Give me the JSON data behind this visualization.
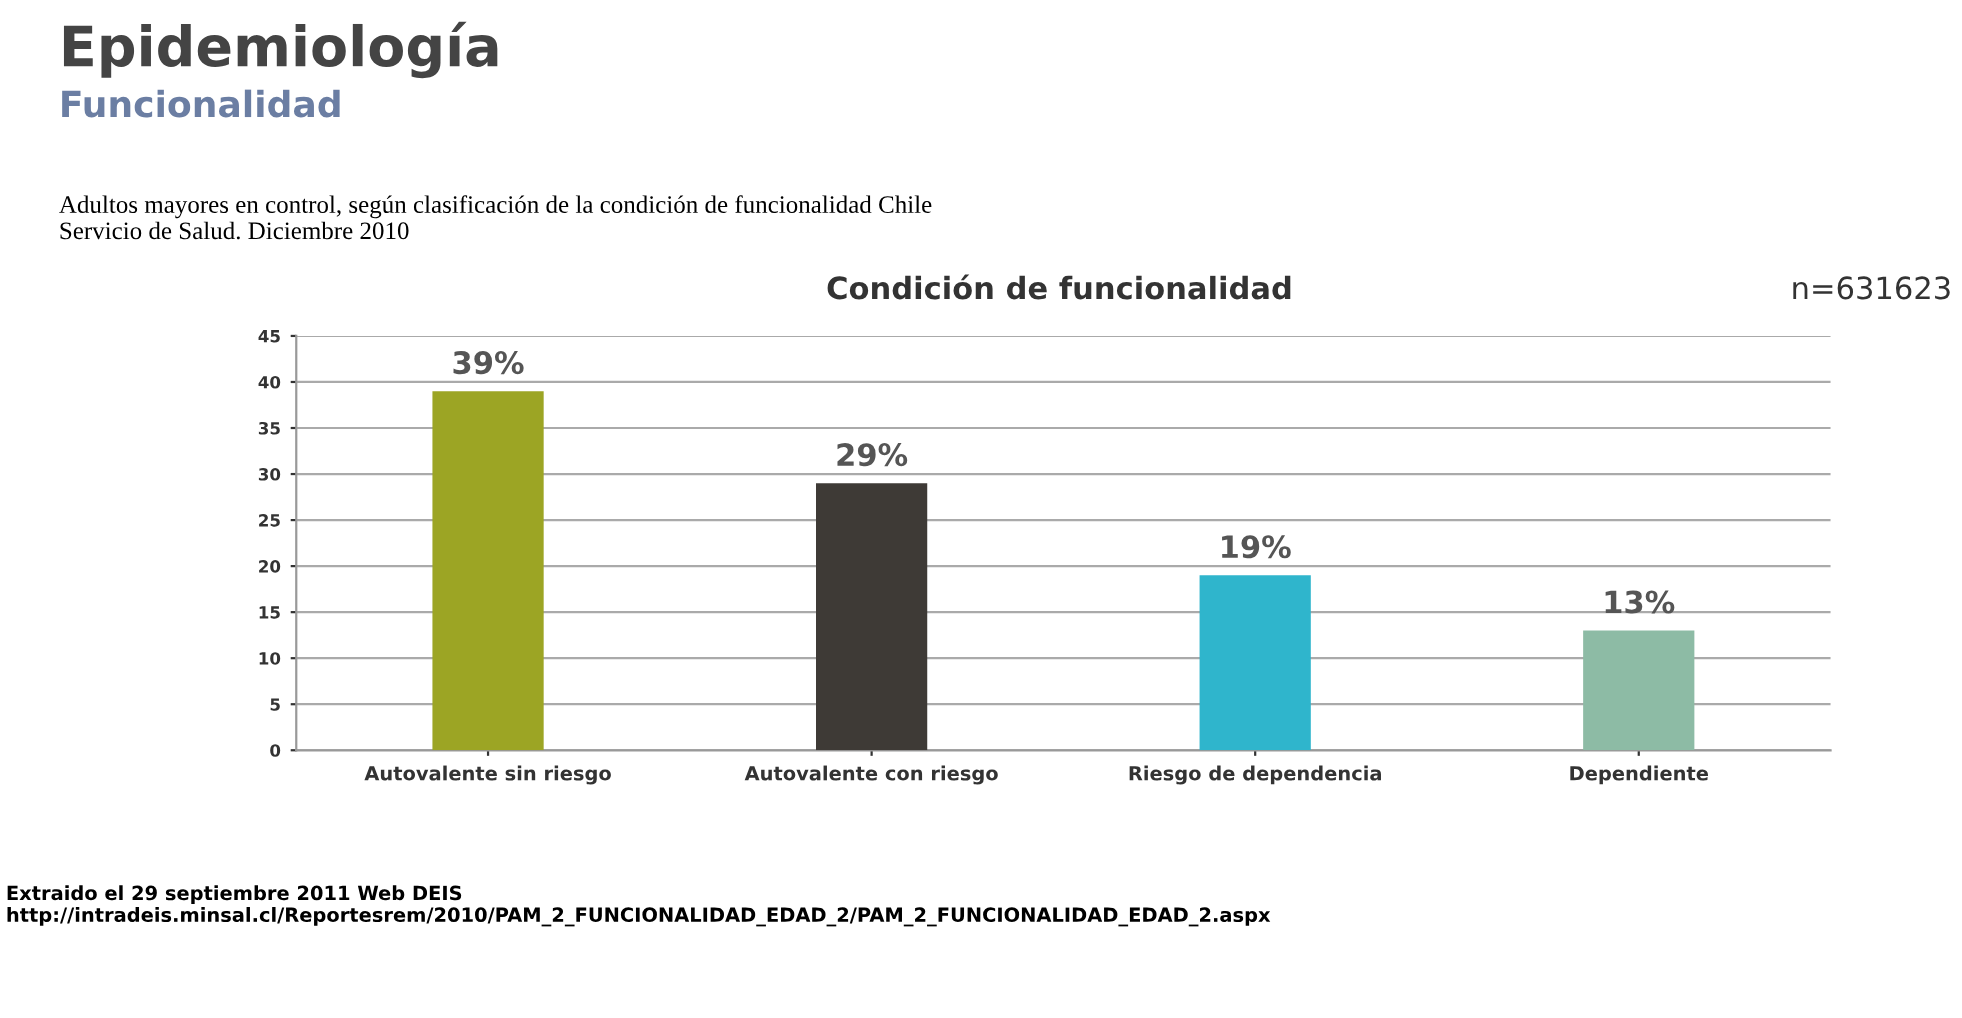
{
  "chart_data": {
    "type": "bar",
    "title": "Epidemiología",
    "subtitle": "Funcionalidad",
    "annotations": [
      "Adultos mayores en control, según clasificación de la condición de funcionalidad Chile\nServicio de Salud. Diciembre 2010",
      "Condición de funcionalidad",
      "n=631623",
      "Extraido el 29 septiembre 2011 Web DEIS\nhttp://intradeis.minsal.cl/Reportesrem/2010/PAM_2_FUNCIONALIDAD_EDAD_2/PAM_2_FUNCIONALIDAD_EDAD_2.aspx"
    ],
    "categories": [
      "Autovalente sin riesgo",
      "Autovalente con riesgo",
      "Riesgo de dependencia",
      "Dependiente"
    ],
    "values": [
      39,
      29,
      19,
      13
    ],
    "colors": [
      "#9ca524",
      "#3e3a36",
      "#2fb5cc",
      "#8dbba5"
    ],
    "value_labels": [
      "39%",
      "29%",
      "19%",
      "13%"
    ],
    "ylim": [
      0,
      45
    ],
    "yticks": [
      0,
      5,
      10,
      15,
      20,
      25,
      30,
      35,
      40,
      45
    ],
    "grid": "y"
  }
}
